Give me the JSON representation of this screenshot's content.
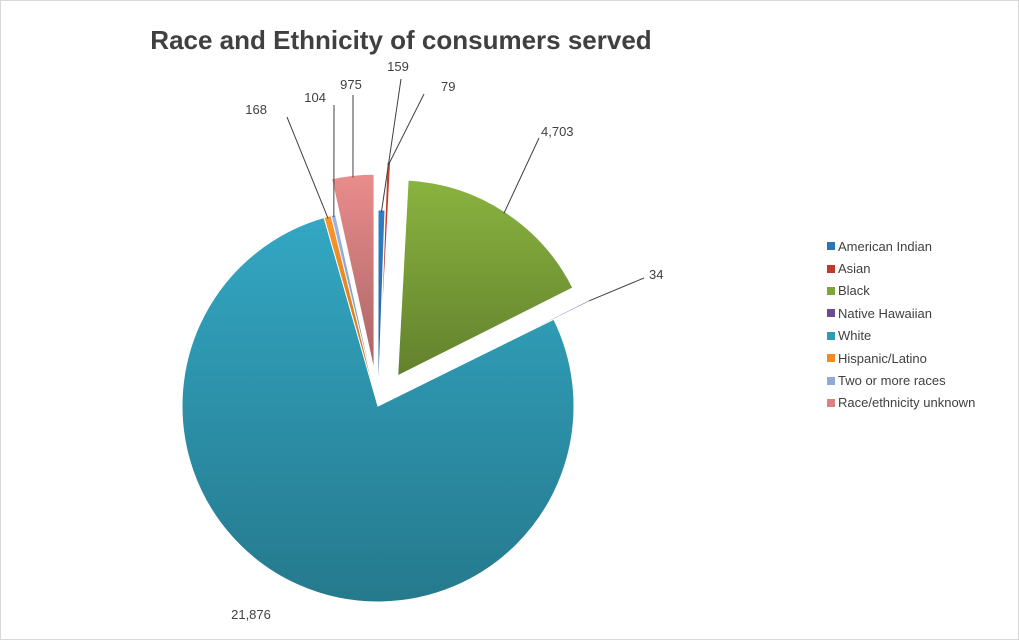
{
  "chart_data": {
    "type": "pie",
    "title": "Race and Ethnicity of consumers served",
    "legend_position": "right",
    "exploded": true,
    "slices": [
      {
        "label": "American Indian",
        "value": 159,
        "value_label": "159",
        "color": "#2e75b6"
      },
      {
        "label": "Asian",
        "value": 79,
        "value_label": "79",
        "color": "#c0392b"
      },
      {
        "label": "Black",
        "value": 4703,
        "value_label": "4,703",
        "color": "#7fa63a"
      },
      {
        "label": "Native Hawaiian",
        "value": 34,
        "value_label": "34",
        "color": "#6a4c93"
      },
      {
        "label": "White",
        "value": 21876,
        "value_label": "21,876",
        "color": "#2f9bb5"
      },
      {
        "label": "Hispanic/Latino",
        "value": 168,
        "value_label": "168",
        "color": "#f08a24"
      },
      {
        "label": "Two or more races",
        "value": 104,
        "value_label": "104",
        "color": "#8fa9d8"
      },
      {
        "label": "Race/ethnicity unknown",
        "value": 975,
        "value_label": "975",
        "color": "#d98282"
      }
    ]
  }
}
